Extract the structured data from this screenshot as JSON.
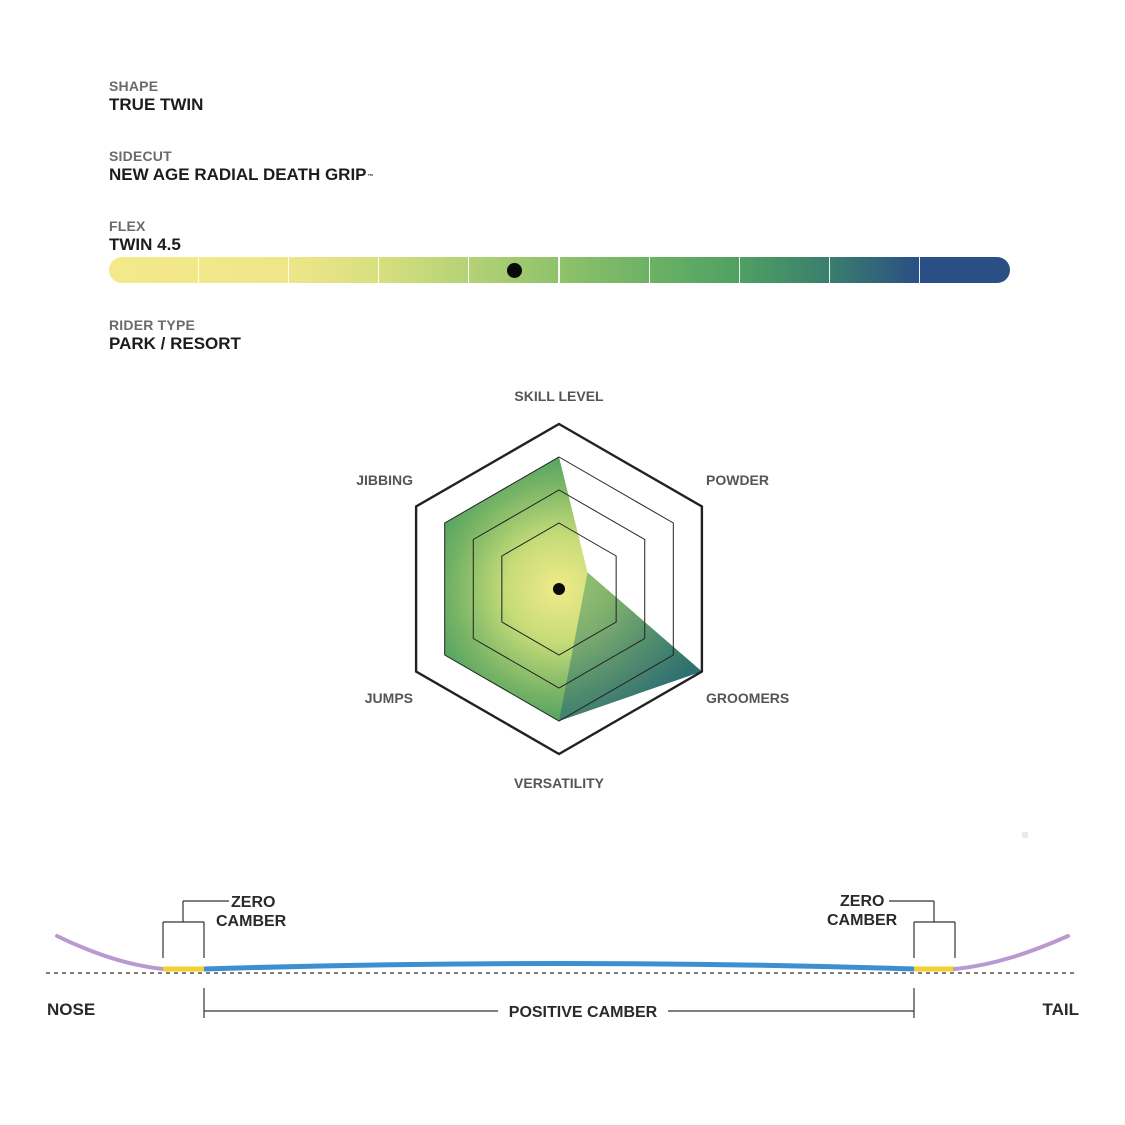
{
  "specs": {
    "shape": {
      "label": "SHAPE",
      "value": "TRUE TWIN"
    },
    "sidecut": {
      "label": "SIDECUT",
      "value": "NEW AGE RADIAL DEATH GRIP",
      "mark": "™"
    },
    "flex": {
      "label": "FLEX",
      "value": "TWIN 4.5"
    },
    "rider_type": {
      "label": "RIDER TYPE",
      "value": "PARK / RESORT"
    }
  },
  "flex_scale": {
    "segments": 10,
    "rating": 4.5,
    "colors": [
      "#f3e98b",
      "#f1e88a",
      "#eee689",
      "#d8df7f",
      "#b4d276",
      "#8fc26b",
      "#6cb264",
      "#4fa063",
      "#3a7e6d",
      "#2a4f84"
    ]
  },
  "radar": {
    "axes": [
      "SKILL LEVEL",
      "POWDER",
      "GROOMERS",
      "VERSATILITY",
      "JUMPS",
      "JIBBING"
    ],
    "max": 5,
    "values": [
      4,
      1,
      5,
      4,
      4,
      4
    ],
    "colors": {
      "center": "#f2ea8a",
      "outer": "#3e9a5e",
      "edge": "#1e4a80",
      "grid": "#222222"
    }
  },
  "camber": {
    "nose_label": "NOSE",
    "tail_label": "TAIL",
    "left_zero": "ZERO\nCAMBER",
    "right_zero": "ZERO\nCAMBER",
    "center_label": "POSITIVE CAMBER",
    "colors": {
      "tip": "#b89ad0",
      "zero": "#f3cf32",
      "positive": "#3d8fd0"
    }
  }
}
